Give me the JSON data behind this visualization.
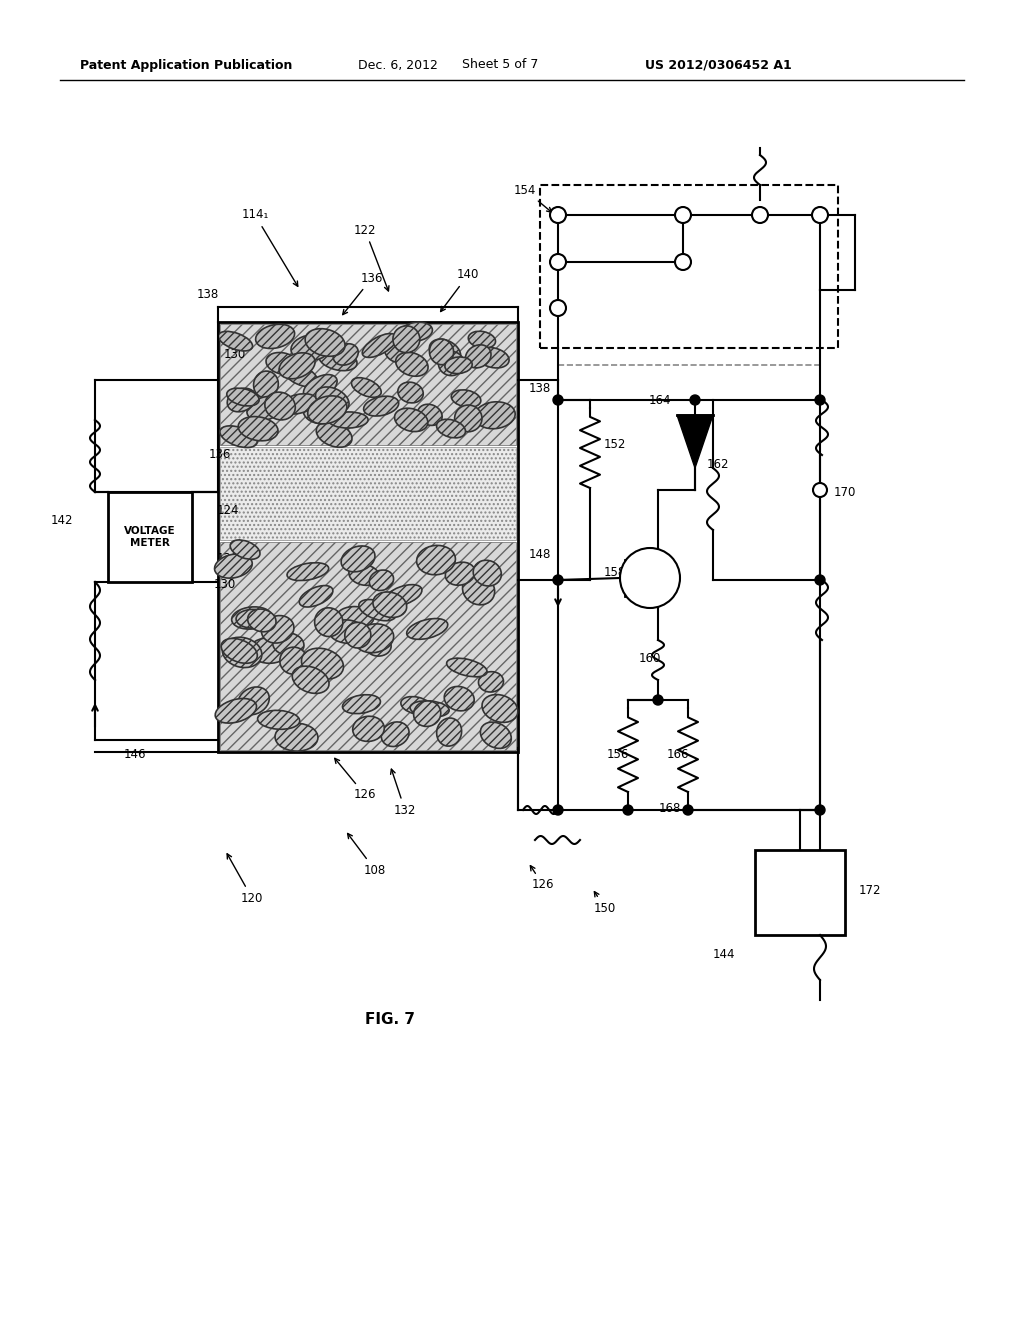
{
  "bg_color": "#ffffff",
  "line_color": "#000000",
  "header_left": "Patent Application Publication",
  "header_date": "Dec. 6, 2012",
  "header_sheet": "Sheet 5 of 7",
  "header_patent": "US 2012/0306452 A1",
  "fig_label": "FIG. 7"
}
